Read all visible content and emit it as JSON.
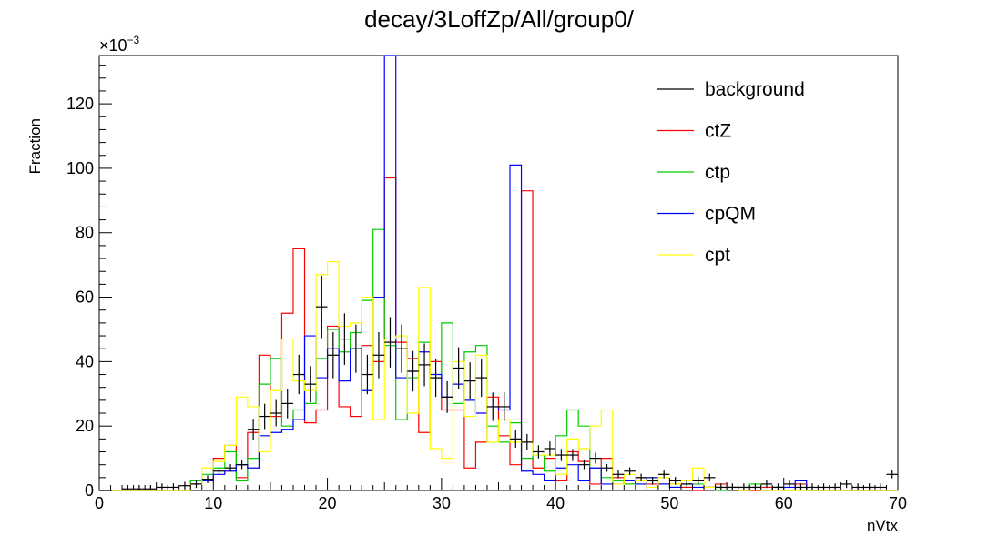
{
  "chart_data": {
    "type": "histogram",
    "title": "decay/3LoffZp/All/group0/",
    "xlabel": "nVtx",
    "ylabel": "Fraction",
    "y_exponent_label": "×10",
    "y_exponent": "−3",
    "xlim": [
      0,
      70
    ],
    "ylim": [
      0,
      0.135
    ],
    "x_ticks": [
      0,
      10,
      20,
      30,
      40,
      50,
      60,
      70
    ],
    "y_ticks": [
      0,
      20,
      40,
      60,
      80,
      100,
      120
    ],
    "bin_edges_start": 0,
    "bin_width": 1,
    "legend_position": "top-right",
    "series": [
      {
        "name": "background",
        "color": "#000000",
        "style": "points-with-errors",
        "values": [
          0,
          0,
          0.0005,
          0.0005,
          0.0005,
          0.001,
          0.001,
          0.0015,
          0.002,
          0.0035,
          0.006,
          0.007,
          0.008,
          0.019,
          0.023,
          0.024,
          0.027,
          0.036,
          0.033,
          0.057,
          0.042,
          0.047,
          0.044,
          0.036,
          0.042,
          0.046,
          0.044,
          0.037,
          0.039,
          0.035,
          0.029,
          0.038,
          0.034,
          0.035,
          0.026,
          0.026,
          0.016,
          0.015,
          0.012,
          0.013,
          0.011,
          0.011,
          0.008,
          0.01,
          0.007,
          0.005,
          0.006,
          0.004,
          0.003,
          0.005,
          0.003,
          0.002,
          0.003,
          0.004,
          0.001,
          0.001,
          0.001,
          0.001,
          0.002,
          0.001,
          0.002,
          0.001,
          0.001,
          0.001,
          0.001,
          0.002,
          0.001,
          0.001,
          0.001,
          0.005
        ]
      },
      {
        "name": "ctZ",
        "color": "#ff0000",
        "style": "step",
        "values": [
          0,
          0,
          0,
          0,
          0,
          0,
          0,
          0,
          0.003,
          0.003,
          0.01,
          0.014,
          0.004,
          0.018,
          0.042,
          0.023,
          0.055,
          0.075,
          0.021,
          0.025,
          0.051,
          0.026,
          0.023,
          0.045,
          0.04,
          0.097,
          0.046,
          0.041,
          0.018,
          0.04,
          0.025,
          0.025,
          0.007,
          0.015,
          0.029,
          0.017,
          0.008,
          0.093,
          0.007,
          0.01,
          0.003,
          0.012,
          0.009,
          0.002,
          0.01,
          0.004,
          0.002,
          0.004,
          0.002,
          0.002,
          0.002,
          0.001,
          0,
          0.001,
          0.002,
          0.001,
          0,
          0,
          0.001,
          0,
          0,
          0.002,
          0,
          0,
          0,
          0,
          0,
          0,
          0,
          0
        ]
      },
      {
        "name": "ctp",
        "color": "#00cc00",
        "style": "step",
        "values": [
          0,
          0,
          0,
          0,
          0,
          0,
          0,
          0,
          0.003,
          0.005,
          0.007,
          0.012,
          0.003,
          0.01,
          0.033,
          0.041,
          0.02,
          0.025,
          0.027,
          0.041,
          0.05,
          0.043,
          0.049,
          0.059,
          0.081,
          0.045,
          0.022,
          0.035,
          0.046,
          0.035,
          0.052,
          0.027,
          0.043,
          0.045,
          0.02,
          0.015,
          0.021,
          0.01,
          0.011,
          0.006,
          0.017,
          0.025,
          0.02,
          0.007,
          0.004,
          0.003,
          0.002,
          0.002,
          0.004,
          0.002,
          0.001,
          0.002,
          0.002,
          0.001,
          0,
          0.001,
          0.001,
          0.002,
          0,
          0.001,
          0,
          0,
          0,
          0,
          0,
          0,
          0,
          0,
          0,
          0
        ]
      },
      {
        "name": "cpQM",
        "color": "#0000ff",
        "style": "step",
        "values": [
          0,
          0,
          0,
          0,
          0,
          0,
          0,
          0,
          0.002,
          0.003,
          0.005,
          0.006,
          0.008,
          0.007,
          0.017,
          0.018,
          0.019,
          0.022,
          0.048,
          0.035,
          0.044,
          0.034,
          0.044,
          0.031,
          0.06,
          0.14,
          0.035,
          0.037,
          0.043,
          0.036,
          0.029,
          0.033,
          0.028,
          0.024,
          0.026,
          0.025,
          0.101,
          0.006,
          0.005,
          0.003,
          0.007,
          0.008,
          0.003,
          0.007,
          0.002,
          0.002,
          0.003,
          0.002,
          0.004,
          0.002,
          0.001,
          0.002,
          0.001,
          0.001,
          0.001,
          0.001,
          0,
          0.001,
          0,
          0.001,
          0.001,
          0.003,
          0,
          0,
          0,
          0,
          0,
          0,
          0,
          0
        ]
      },
      {
        "name": "cpt",
        "color": "#ffff00",
        "style": "step",
        "values": [
          0,
          0,
          0,
          0,
          0,
          0,
          0,
          0,
          0.002,
          0.007,
          0.009,
          0.014,
          0.029,
          0.026,
          0.012,
          0.031,
          0.047,
          0.034,
          0.031,
          0.067,
          0.071,
          0.051,
          0.052,
          0.06,
          0.022,
          0.047,
          0.048,
          0.024,
          0.063,
          0.013,
          0.01,
          0.04,
          0.023,
          0.042,
          0.015,
          0.022,
          0.015,
          0.015,
          0.011,
          0.011,
          0.005,
          0.016,
          0.013,
          0.02,
          0.025,
          0.002,
          0.005,
          0.003,
          0.001,
          0.004,
          0.002,
          0.003,
          0.007,
          0.001,
          0.001,
          0.001,
          0,
          0.001,
          0,
          0,
          0,
          0,
          0,
          0,
          0,
          0,
          0,
          0,
          0,
          0
        ]
      }
    ]
  }
}
